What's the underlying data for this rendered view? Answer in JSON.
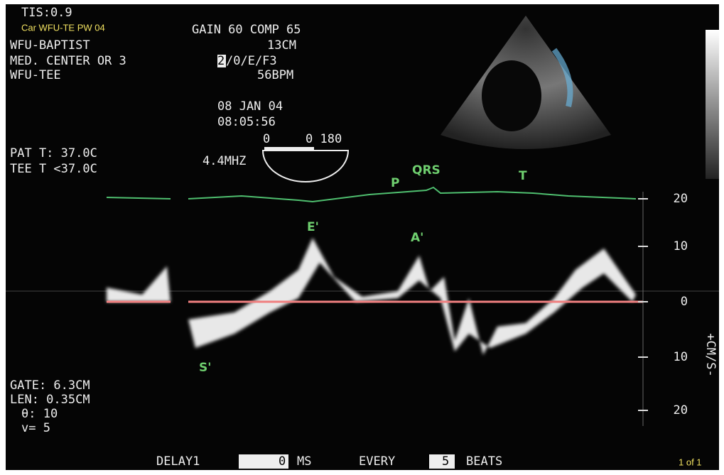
{
  "header": {
    "tis": "TIS:0.9",
    "car": "Car WFU-TE PW 04",
    "gain_comp": "GAIN 60 COMP 65",
    "site": "WFU-BAPTIST",
    "depth": "13CM",
    "center": "MED. CENTER OR 3",
    "mode_highlight": "2",
    "mode": "/0/E/F3",
    "probe": "WFU-TEE",
    "heart_rate": "56BPM",
    "date": "08 JAN 04",
    "time": "08:05:56",
    "angle_start": "0",
    "angle_range": "0 180",
    "pat_temp": "PAT T: 37.0C",
    "tee_temp": "TEE T <37.0C",
    "frequency": "4.4MHZ"
  },
  "ecg_labels": {
    "p": "P",
    "qrs": "QRS",
    "t": "T"
  },
  "wave_labels": {
    "e_prime": "E'",
    "a_prime": "A'",
    "s_prime": "S'"
  },
  "scale": {
    "ticks": [
      "20",
      "10",
      "0",
      "10",
      "20"
    ],
    "unit": "+CM/S-"
  },
  "gate": [
    "GATE:  6.3CM",
    "LEN: 0.35CM",
    "θ: 10",
    "v= 5"
  ],
  "footer": {
    "delay": "DELAY1",
    "delay_value": "0",
    "delay_unit": "MS",
    "every": "EVERY",
    "every_value": "5",
    "beats": "BEATS",
    "page": "1 of 1"
  }
}
